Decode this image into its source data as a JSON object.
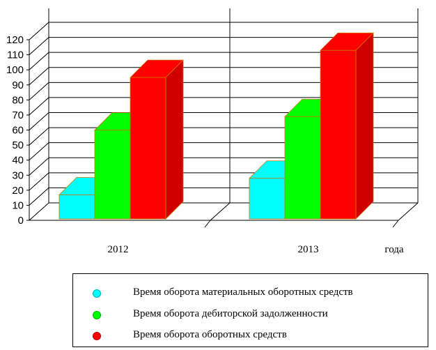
{
  "chart_data": {
    "type": "bar",
    "style": "3d-clustered-column",
    "categories": [
      "2012",
      "2013"
    ],
    "xlabel": "года",
    "ylabel": "",
    "ylim": [
      0,
      120
    ],
    "yticks": [
      0,
      10,
      20,
      30,
      40,
      50,
      60,
      70,
      80,
      90,
      100,
      110,
      120
    ],
    "grid": true,
    "legend_position": "bottom",
    "series": [
      {
        "name": "Время оборота материальных оборотных средств",
        "values": [
          16,
          27
        ],
        "color": "#00ffff"
      },
      {
        "name": "Время оборота дебиторской задолженности",
        "values": [
          59,
          68
        ],
        "color": "#00ff00"
      },
      {
        "name": "Время оборота оборотных средств",
        "values": [
          94,
          112
        ],
        "color": "#ff0000"
      }
    ]
  }
}
